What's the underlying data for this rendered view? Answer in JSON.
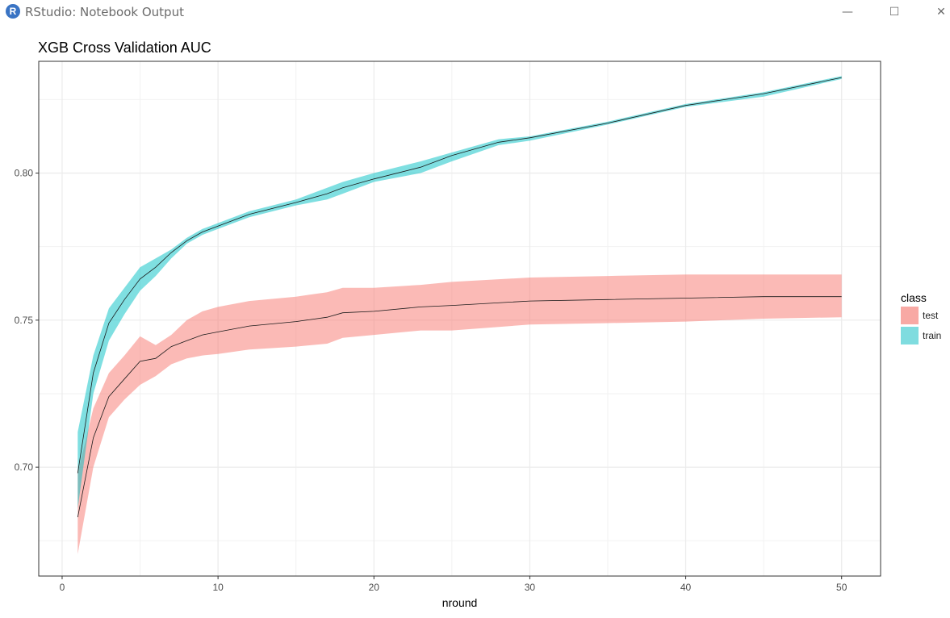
{
  "window": {
    "title": "RStudio: Notebook Output",
    "icon": "r-logo-icon",
    "icon_label": "R",
    "minimize": "—",
    "maximize": "☐",
    "close": "✕"
  },
  "chart_data": {
    "type": "line",
    "title": "XGB Cross Validation AUC",
    "xlabel": "nround",
    "ylabel": "",
    "xlim": [
      -1.5,
      52.5
    ],
    "ylim": [
      0.663,
      0.838
    ],
    "x_ticks": [
      0,
      10,
      20,
      30,
      40,
      50
    ],
    "y_ticks": [
      0.7,
      0.75,
      0.8
    ],
    "y_tick_labels": [
      "0.70",
      "0.75",
      "0.80"
    ],
    "grid": true,
    "legend": {
      "title": "class",
      "position": "right"
    },
    "series": [
      {
        "name": "test",
        "color": "#f8766d",
        "ribbon_fill": "#f8a9a4",
        "x": [
          1,
          2,
          3,
          4,
          5,
          6,
          7,
          8,
          9,
          10,
          12,
          15,
          17,
          18,
          20,
          23,
          25,
          30,
          35,
          40,
          45,
          50
        ],
        "mean": [
          0.683,
          0.71,
          0.724,
          0.73,
          0.736,
          0.737,
          0.741,
          0.743,
          0.745,
          0.746,
          0.748,
          0.7495,
          0.751,
          0.7525,
          0.753,
          0.7545,
          0.755,
          0.7565,
          0.757,
          0.7575,
          0.758,
          0.758
        ],
        "upper": [
          0.698,
          0.72,
          0.732,
          0.738,
          0.7445,
          0.7415,
          0.745,
          0.75,
          0.753,
          0.7545,
          0.7565,
          0.758,
          0.7595,
          0.761,
          0.761,
          0.762,
          0.763,
          0.7645,
          0.765,
          0.7655,
          0.7655,
          0.7655
        ],
        "lower": [
          0.6705,
          0.7,
          0.717,
          0.723,
          0.728,
          0.731,
          0.735,
          0.737,
          0.738,
          0.7385,
          0.74,
          0.741,
          0.742,
          0.744,
          0.745,
          0.7465,
          0.7465,
          0.7485,
          0.749,
          0.7495,
          0.7505,
          0.751
        ]
      },
      {
        "name": "train",
        "color": "#00bfc4",
        "ribbon_fill": "#7fdcdf",
        "x": [
          1,
          2,
          3,
          4,
          5,
          6,
          7,
          8,
          9,
          10,
          12,
          15,
          17,
          18,
          20,
          23,
          25,
          28,
          30,
          35,
          40,
          45,
          50
        ],
        "mean": [
          0.698,
          0.732,
          0.749,
          0.757,
          0.764,
          0.768,
          0.773,
          0.777,
          0.78,
          0.782,
          0.786,
          0.79,
          0.793,
          0.795,
          0.798,
          0.802,
          0.806,
          0.8105,
          0.812,
          0.817,
          0.823,
          0.827,
          0.8325
        ],
        "upper": [
          0.712,
          0.738,
          0.754,
          0.761,
          0.768,
          0.771,
          0.774,
          0.778,
          0.781,
          0.783,
          0.787,
          0.791,
          0.795,
          0.797,
          0.8,
          0.804,
          0.807,
          0.8115,
          0.8125,
          0.8175,
          0.8235,
          0.8275,
          0.833
        ],
        "lower": [
          0.686,
          0.725,
          0.743,
          0.752,
          0.76,
          0.765,
          0.771,
          0.776,
          0.779,
          0.781,
          0.785,
          0.789,
          0.791,
          0.793,
          0.797,
          0.8,
          0.804,
          0.8095,
          0.811,
          0.8165,
          0.8225,
          0.826,
          0.832
        ]
      }
    ]
  }
}
